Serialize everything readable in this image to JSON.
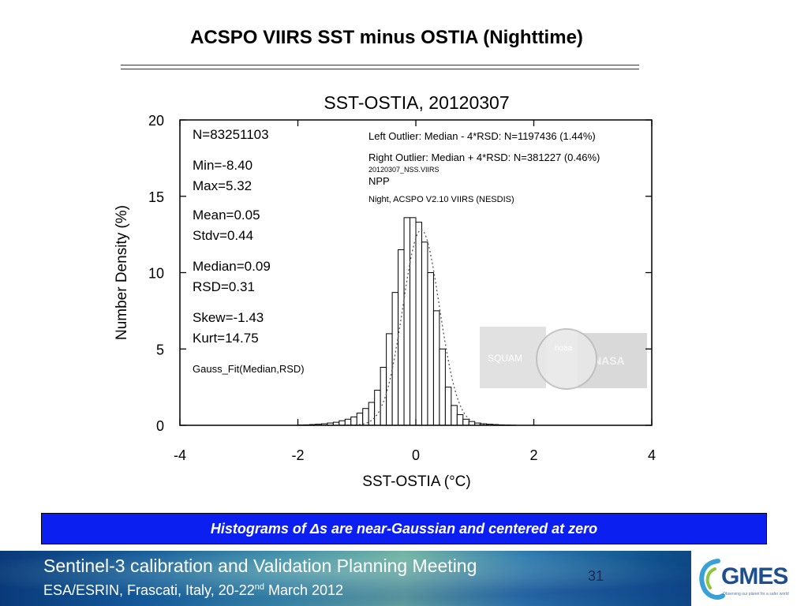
{
  "slide": {
    "title": "ACSPO VIIRS SST minus OSTIA (Nighttime)",
    "banner": "Histograms of Δs are near-Gaussian and centered at zero",
    "footer_line1": "Sentinel-3 calibration and Validation Planning Meeting",
    "footer_line2_pre": "ESA/ESRIN, Frascati, Italy, 20-22",
    "footer_line2_sup": "nd",
    "footer_line2_post": " March 2012",
    "page_number": "31",
    "logo_text": "GMES",
    "logo_tagline": "Observing our planet for a safer world"
  },
  "colors": {
    "banner_bg": "#0b1ff0",
    "footer_accent": "#1d4f8c"
  },
  "chart_data": {
    "type": "bar",
    "title": "SST-OSTIA, 20120307",
    "xlabel": "SST-OSTIA (°C)",
    "ylabel": "Number Density (%)",
    "xlim": [
      -4,
      4
    ],
    "ylim": [
      0,
      20
    ],
    "xticks": [
      -4,
      -2,
      0,
      2,
      4
    ],
    "yticks": [
      0,
      5,
      10,
      15,
      20
    ],
    "bin_width": 0.1,
    "bins_left_edges": [
      -4.0,
      -3.9,
      -3.8,
      -3.7,
      -3.6,
      -3.5,
      -3.4,
      -3.3,
      -3.2,
      -3.1,
      -3.0,
      -2.9,
      -2.8,
      -2.7,
      -2.6,
      -2.5,
      -2.4,
      -2.3,
      -2.2,
      -2.1,
      -2.0,
      -1.9,
      -1.8,
      -1.7,
      -1.6,
      -1.5,
      -1.4,
      -1.3,
      -1.2,
      -1.1,
      -1.0,
      -0.9,
      -0.8,
      -0.7,
      -0.6,
      -0.5,
      -0.4,
      -0.3,
      -0.2,
      -0.1,
      0.0,
      0.1,
      0.2,
      0.3,
      0.4,
      0.5,
      0.6,
      0.7,
      0.8,
      0.9,
      1.0,
      1.1,
      1.2,
      1.3,
      1.4,
      1.5,
      1.6,
      1.7,
      1.8,
      1.9
    ],
    "values": [
      0.0,
      0.0,
      0.0,
      0.0,
      0.0,
      0.0,
      0.0,
      0.0,
      0.0,
      0.0,
      0.0,
      0.0,
      0.0,
      0.0,
      0.0,
      0.0,
      0.0,
      0.0,
      0.0,
      0.0,
      0.02,
      0.03,
      0.05,
      0.07,
      0.1,
      0.15,
      0.2,
      0.3,
      0.4,
      0.55,
      0.8,
      1.1,
      1.5,
      2.3,
      3.8,
      6.0,
      8.7,
      11.5,
      13.6,
      13.6,
      13.3,
      12.0,
      10.0,
      7.5,
      5.0,
      2.5,
      1.3,
      0.7,
      0.4,
      0.25,
      0.15,
      0.1,
      0.07,
      0.05,
      0.03,
      0.02,
      0.01,
      0.0,
      0.0,
      0.0
    ],
    "gauss_fit": {
      "label": "Gauss_Fit(Median,RSD)",
      "median": 0.09,
      "rsd": 0.31,
      "peak": 12.8
    },
    "stats": [
      "N=83251103",
      "Min=-8.40",
      "Max=5.32",
      "Mean=0.05",
      "Stdv=0.44",
      "Median=0.09",
      "RSD=0.31",
      "Skew=-1.43",
      "Kurt=14.75",
      "Gauss_Fit(Median,RSD)"
    ],
    "annotations": [
      "Left Outlier:  Median - 4*RSD: N=1197436 (1.44%)",
      "Right Outlier: Median + 4*RSD: N=381227 (0.46%)",
      "20120307_NSS.VIIRS",
      "NPP",
      "Night, ACSPO V2.10 VIIRS (NESDIS)"
    ],
    "logos": [
      "SQUAM",
      "noaa",
      "NASA"
    ],
    "grid": false
  }
}
